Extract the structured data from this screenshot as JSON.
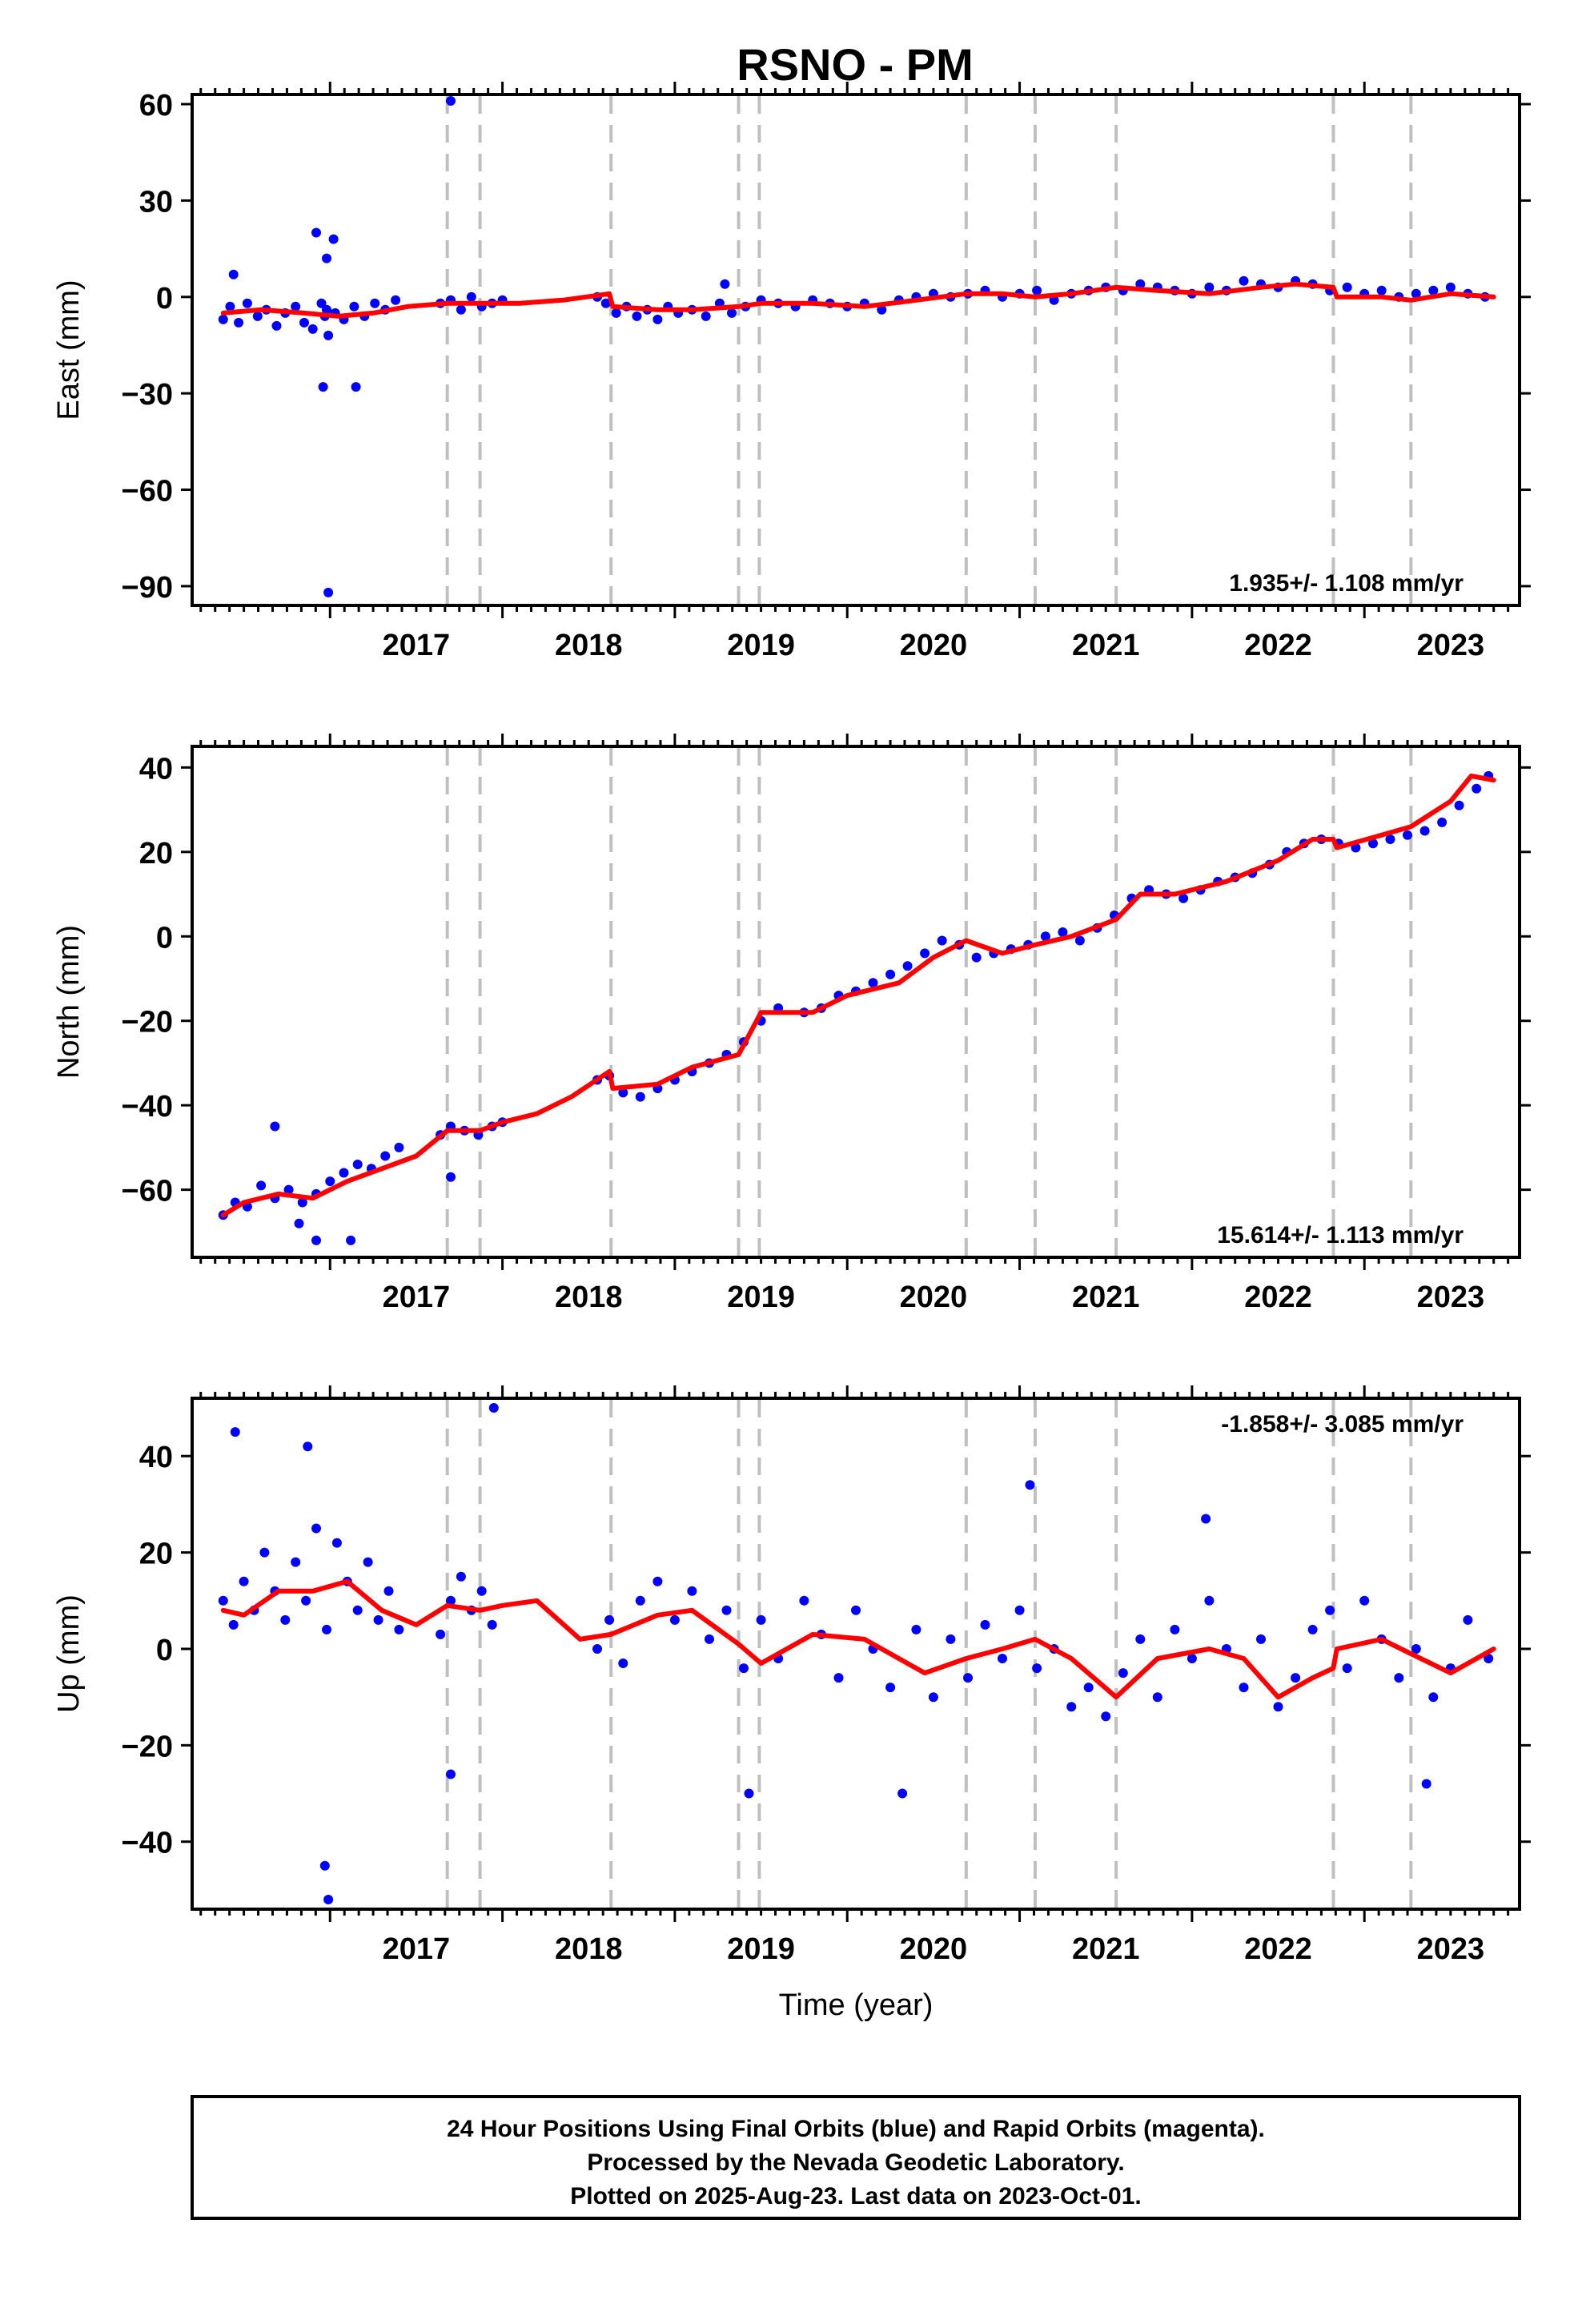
{
  "title": "RSNO - PM",
  "footer": {
    "lines": [
      "24 Hour Positions Using Final Orbits (blue) and Rapid Orbits (magenta).",
      "Processed by the Nevada Geodetic Laboratory.",
      "Plotted on 2025-Aug-23. Last data on 2023-Oct-01."
    ]
  },
  "colors": {
    "data": "#0000ff",
    "model": "#ff0000",
    "breaks": "#bfbfbf",
    "frame": "#000000"
  },
  "chart_data": [
    {
      "type": "scatter",
      "ylabel": "East (mm)",
      "xlabel": "",
      "rate_label": "1.935+/- 1.108 mm/yr",
      "xlim": [
        2016.2,
        2023.9
      ],
      "ylim": [
        -96,
        63
      ],
      "yticks": [
        -90,
        -60,
        -30,
        0,
        30,
        60
      ],
      "xticks": [
        2017,
        2018,
        2019,
        2020,
        2021,
        2022,
        2023
      ],
      "breaks": [
        2017.68,
        2017.87,
        2018.63,
        2019.37,
        2019.49,
        2020.69,
        2021.09,
        2021.56,
        2022.82,
        2023.27
      ],
      "series": [
        {
          "kind": "points",
          "x": [
            2016.38,
            2016.42,
            2016.47,
            2016.52,
            2016.58,
            2016.63,
            2016.69,
            2016.74,
            2016.8,
            2016.85,
            2016.9,
            2016.95,
            2016.97,
            2016.98,
            2016.99,
            2017.03,
            2017.08,
            2017.14,
            2017.2,
            2017.26,
            2017.32,
            2017.38,
            2017.64,
            2017.7,
            2017.76,
            2017.82,
            2017.88,
            2017.94,
            2018.0,
            2018.55,
            2018.6,
            2018.66,
            2018.72,
            2018.78,
            2018.84,
            2018.9,
            2018.96,
            2019.02,
            2019.1,
            2019.18,
            2019.26,
            2019.33,
            2019.41,
            2019.5,
            2019.6,
            2019.7,
            2019.8,
            2019.9,
            2020.0,
            2020.1,
            2020.2,
            2020.3,
            2020.4,
            2020.5,
            2020.6,
            2020.7,
            2020.8,
            2020.9,
            2021.0,
            2021.1,
            2021.2,
            2021.3,
            2021.4,
            2021.5,
            2021.6,
            2021.7,
            2021.8,
            2021.9,
            2022.0,
            2022.1,
            2022.2,
            2022.3,
            2022.4,
            2022.5,
            2022.6,
            2022.7,
            2022.8,
            2022.9,
            2023.0,
            2023.1,
            2023.2,
            2023.3,
            2023.4,
            2023.5,
            2023.6,
            2023.7,
            2016.44,
            2016.92,
            2016.98,
            2017.02,
            2016.96,
            2016.99,
            2017.15,
            2017.7,
            2019.29
          ],
          "y": [
            -7,
            -3,
            -8,
            -2,
            -6,
            -4,
            -9,
            -5,
            -3,
            -8,
            -10,
            -2,
            -6,
            -4,
            -12,
            -5,
            -7,
            -3,
            -6,
            -2,
            -4,
            -1,
            -2,
            -1,
            -4,
            0,
            -3,
            -2,
            -1,
            0,
            -2,
            -5,
            -3,
            -6,
            -4,
            -7,
            -3,
            -5,
            -4,
            -6,
            -2,
            -5,
            -3,
            -1,
            -2,
            -3,
            -1,
            -2,
            -3,
            -2,
            -4,
            -1,
            0,
            1,
            0,
            1,
            2,
            0,
            1,
            2,
            -1,
            1,
            2,
            3,
            2,
            4,
            3,
            2,
            1,
            3,
            2,
            5,
            4,
            3,
            5,
            4,
            2,
            3,
            1,
            2,
            0,
            1,
            2,
            3,
            1,
            0,
            7,
            20,
            12,
            18,
            -28,
            -92,
            -28,
            61,
            4
          ]
        },
        {
          "kind": "line",
          "x": [
            2016.38,
            2016.6,
            2016.85,
            2017.05,
            2017.25,
            2017.45,
            2017.68,
            2017.87,
            2018.1,
            2018.35,
            2018.62,
            2018.64,
            2018.9,
            2019.1,
            2019.37,
            2019.5,
            2019.8,
            2020.1,
            2020.4,
            2020.69,
            2020.9,
            2021.09,
            2021.3,
            2021.56,
            2021.8,
            2022.1,
            2022.4,
            2022.6,
            2022.82,
            2022.84,
            2023.1,
            2023.27,
            2023.5,
            2023.75
          ],
          "y": [
            -5,
            -4,
            -5,
            -6,
            -5,
            -3,
            -2,
            -2,
            -2,
            -1,
            1,
            -3,
            -4,
            -4,
            -3,
            -2,
            -2,
            -3,
            -1,
            1,
            1,
            0,
            1,
            3,
            2,
            1,
            3,
            4,
            3,
            0,
            0,
            -1,
            1,
            0
          ]
        }
      ]
    },
    {
      "type": "scatter",
      "ylabel": "North (mm)",
      "xlabel": "",
      "rate_label": "15.614+/- 1.113 mm/yr",
      "xlim": [
        2016.2,
        2023.9
      ],
      "ylim": [
        -76,
        45
      ],
      "yticks": [
        -60,
        -40,
        -20,
        0,
        20,
        40
      ],
      "xticks": [
        2017,
        2018,
        2019,
        2020,
        2021,
        2022,
        2023
      ],
      "breaks": [
        2017.68,
        2017.87,
        2018.63,
        2019.37,
        2019.49,
        2020.69,
        2021.09,
        2021.56,
        2022.82,
        2023.27
      ],
      "series": [
        {
          "kind": "points",
          "x": [
            2016.38,
            2016.45,
            2016.52,
            2016.6,
            2016.68,
            2016.76,
            2016.84,
            2016.92,
            2017.0,
            2017.08,
            2017.16,
            2017.24,
            2017.32,
            2017.4,
            2017.64,
            2017.7,
            2017.78,
            2017.86,
            2017.94,
            2018.0,
            2018.55,
            2018.62,
            2018.7,
            2018.8,
            2018.9,
            2019.0,
            2019.1,
            2019.2,
            2019.3,
            2019.4,
            2019.5,
            2019.6,
            2019.75,
            2019.85,
            2019.95,
            2020.05,
            2020.15,
            2020.25,
            2020.35,
            2020.45,
            2020.55,
            2020.65,
            2020.75,
            2020.85,
            2020.95,
            2021.05,
            2021.15,
            2021.25,
            2021.35,
            2021.45,
            2021.55,
            2021.65,
            2021.75,
            2021.85,
            2021.95,
            2022.05,
            2022.15,
            2022.25,
            2022.35,
            2022.45,
            2022.55,
            2022.65,
            2022.75,
            2022.85,
            2022.95,
            2023.05,
            2023.15,
            2023.25,
            2023.35,
            2023.45,
            2023.55,
            2023.65,
            2023.72,
            2016.68,
            2016.82,
            2016.92,
            2017.12,
            2017.7
          ],
          "y": [
            -66,
            -63,
            -64,
            -59,
            -62,
            -60,
            -63,
            -61,
            -58,
            -56,
            -54,
            -55,
            -52,
            -50,
            -47,
            -45,
            -46,
            -47,
            -45,
            -44,
            -34,
            -33,
            -37,
            -38,
            -36,
            -34,
            -32,
            -30,
            -28,
            -25,
            -20,
            -17,
            -18,
            -17,
            -14,
            -13,
            -11,
            -9,
            -7,
            -4,
            -1,
            -2,
            -5,
            -4,
            -3,
            -2,
            0,
            1,
            -1,
            2,
            5,
            9,
            11,
            10,
            9,
            11,
            13,
            14,
            15,
            17,
            20,
            22,
            23,
            22,
            21,
            22,
            23,
            24,
            25,
            27,
            31,
            35,
            38,
            -45,
            -68,
            -72,
            -72,
            -57
          ]
        },
        {
          "kind": "line",
          "x": [
            2016.38,
            2016.5,
            2016.7,
            2016.9,
            2017.1,
            2017.3,
            2017.5,
            2017.68,
            2017.87,
            2018.0,
            2018.2,
            2018.4,
            2018.62,
            2018.64,
            2018.9,
            2019.1,
            2019.37,
            2019.5,
            2019.8,
            2020.0,
            2020.3,
            2020.5,
            2020.69,
            2020.9,
            2021.09,
            2021.3,
            2021.56,
            2021.7,
            2021.9,
            2022.2,
            2022.5,
            2022.7,
            2022.82,
            2022.84,
            2023.1,
            2023.27,
            2023.5,
            2023.62,
            2023.75
          ],
          "y": [
            -66,
            -63,
            -61,
            -62,
            -58,
            -55,
            -52,
            -46,
            -46,
            -44,
            -42,
            -38,
            -32,
            -36,
            -35,
            -31,
            -28,
            -18,
            -18,
            -14,
            -11,
            -5,
            -1,
            -4,
            -2,
            0,
            4,
            10,
            10,
            13,
            18,
            23,
            23,
            21,
            24,
            26,
            32,
            38,
            37
          ]
        }
      ]
    },
    {
      "type": "scatter",
      "ylabel": "Up (mm)",
      "xlabel": "Time (year)",
      "rate_label": "-1.858+/- 3.085 mm/yr",
      "xlim": [
        2016.2,
        2023.9
      ],
      "ylim": [
        -54,
        52
      ],
      "yticks": [
        -40,
        -20,
        0,
        20,
        40
      ],
      "xticks": [
        2017,
        2018,
        2019,
        2020,
        2021,
        2022,
        2023
      ],
      "breaks": [
        2017.68,
        2017.87,
        2018.63,
        2019.37,
        2019.49,
        2020.69,
        2021.09,
        2021.56,
        2022.82,
        2023.27
      ],
      "series": [
        {
          "kind": "points",
          "x": [
            2016.38,
            2016.44,
            2016.5,
            2016.56,
            2016.62,
            2016.68,
            2016.74,
            2016.8,
            2016.86,
            2016.92,
            2016.98,
            2017.04,
            2017.1,
            2017.16,
            2017.22,
            2017.28,
            2017.34,
            2017.4,
            2017.64,
            2017.7,
            2017.76,
            2017.82,
            2017.88,
            2017.94,
            2018.55,
            2018.62,
            2018.7,
            2018.8,
            2018.9,
            2019.0,
            2019.1,
            2019.2,
            2019.3,
            2019.4,
            2019.5,
            2019.6,
            2019.75,
            2019.85,
            2019.95,
            2020.05,
            2020.15,
            2020.25,
            2020.4,
            2020.5,
            2020.6,
            2020.7,
            2020.8,
            2020.9,
            2021.0,
            2021.1,
            2021.2,
            2021.3,
            2021.4,
            2021.5,
            2021.6,
            2021.7,
            2021.8,
            2021.9,
            2022.0,
            2022.1,
            2022.2,
            2022.3,
            2022.4,
            2022.5,
            2022.6,
            2022.7,
            2022.8,
            2022.9,
            2023.0,
            2023.1,
            2023.2,
            2023.3,
            2023.4,
            2023.5,
            2023.6,
            2023.72,
            2016.45,
            2016.87,
            2016.97,
            2016.99,
            2017.7,
            2017.95,
            2019.43,
            2020.32,
            2023.36,
            2021.06,
            2022.08
          ],
          "y": [
            10,
            5,
            14,
            8,
            20,
            12,
            6,
            18,
            10,
            25,
            4,
            22,
            14,
            8,
            18,
            6,
            12,
            4,
            3,
            10,
            15,
            8,
            12,
            5,
            0,
            6,
            -3,
            10,
            14,
            6,
            12,
            2,
            8,
            -4,
            6,
            -2,
            10,
            3,
            -6,
            8,
            0,
            -8,
            4,
            -10,
            2,
            -6,
            5,
            -2,
            8,
            -4,
            0,
            -12,
            -8,
            -14,
            -5,
            2,
            -10,
            4,
            -2,
            10,
            0,
            -8,
            2,
            -12,
            -6,
            4,
            8,
            -4,
            10,
            2,
            -6,
            0,
            -10,
            -4,
            6,
            -2,
            45,
            42,
            -45,
            -52,
            -26,
            50,
            -30,
            -30,
            -28,
            34,
            27
          ]
        },
        {
          "kind": "line",
          "x": [
            2016.38,
            2016.5,
            2016.7,
            2016.9,
            2017.1,
            2017.3,
            2017.5,
            2017.68,
            2017.87,
            2018.0,
            2018.2,
            2018.45,
            2018.63,
            2018.9,
            2019.1,
            2019.37,
            2019.5,
            2019.8,
            2020.1,
            2020.45,
            2020.69,
            2020.9,
            2021.09,
            2021.3,
            2021.56,
            2021.8,
            2022.1,
            2022.3,
            2022.5,
            2022.7,
            2022.82,
            2022.84,
            2023.1,
            2023.27,
            2023.5,
            2023.75
          ],
          "y": [
            8,
            7,
            12,
            12,
            14,
            8,
            5,
            9,
            8,
            9,
            10,
            2,
            3,
            7,
            8,
            1,
            -3,
            3,
            2,
            -5,
            -2,
            0,
            2,
            -2,
            -10,
            -2,
            0,
            -2,
            -10,
            -6,
            -4,
            0,
            2,
            -1,
            -5,
            0
          ]
        }
      ]
    }
  ]
}
